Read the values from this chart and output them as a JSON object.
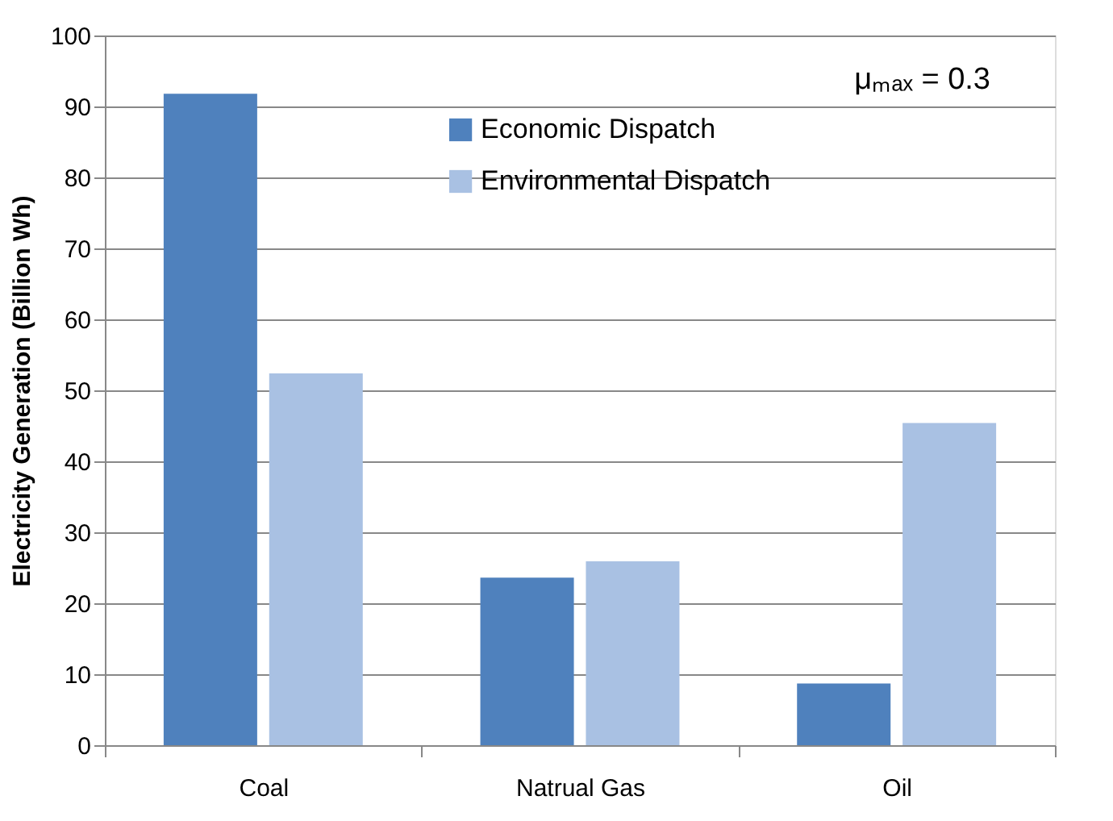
{
  "chart_data": {
    "type": "bar",
    "ylabel": "Electricity Generation (Billion Wh)",
    "categories": [
      "Coal",
      "Natrual Gas",
      "Oil"
    ],
    "series": [
      {
        "name": "Economic Dispatch",
        "color": "#4f81bd",
        "values": [
          91.8,
          23.6,
          8.7
        ]
      },
      {
        "name": "Environmental Dispatch",
        "color": "#a9c1e3",
        "values": [
          52.4,
          25.9,
          45.4
        ]
      }
    ],
    "ylim": [
      0,
      100
    ],
    "yticks": [
      0,
      10,
      20,
      30,
      40,
      50,
      60,
      70,
      80,
      90,
      100
    ],
    "grid": "y",
    "legend": "top",
    "annotations": [
      "μₘₐₓ = 0.3"
    ]
  }
}
